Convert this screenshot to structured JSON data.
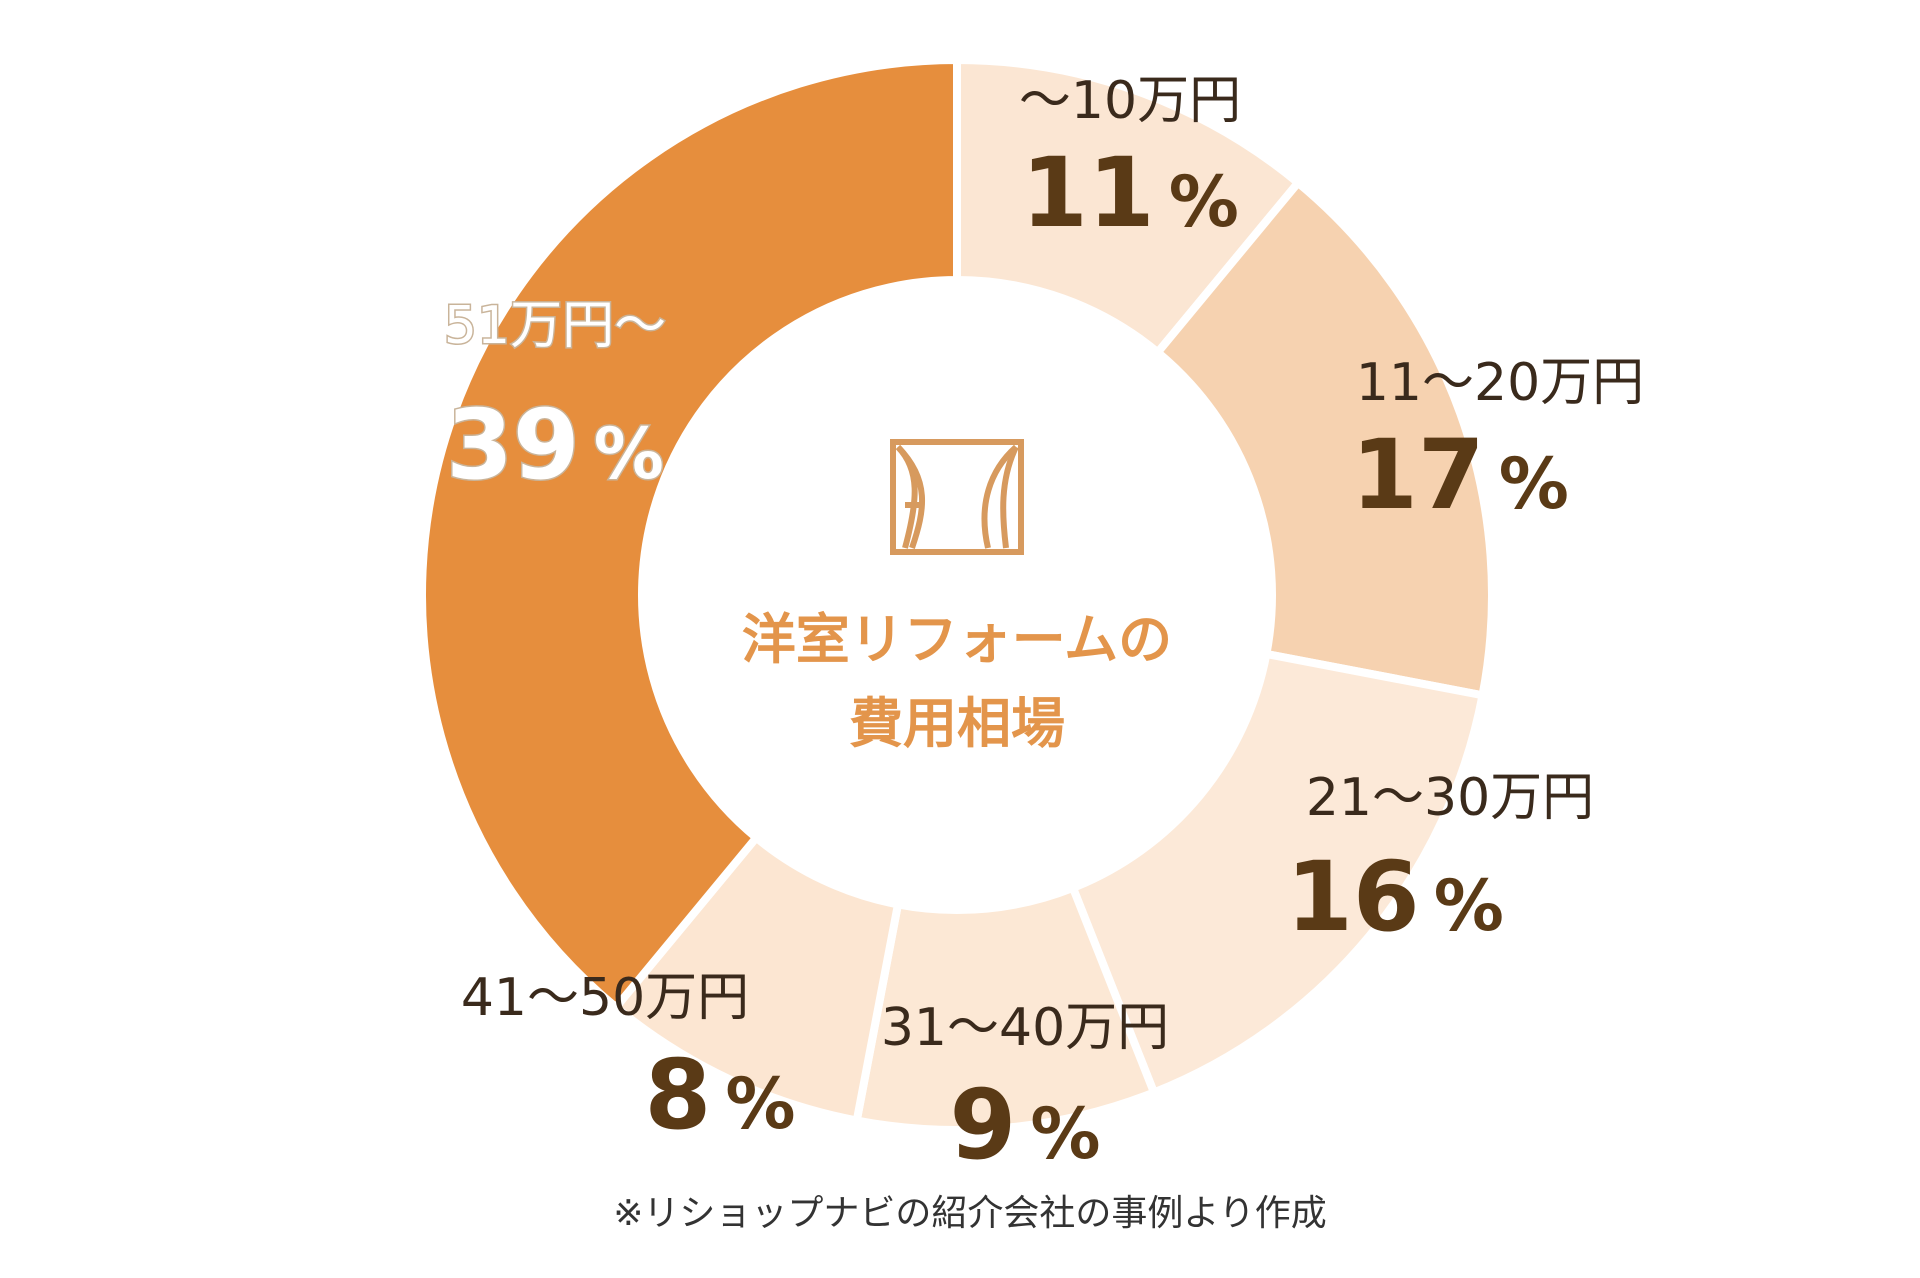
{
  "chart_data": {
    "type": "pie",
    "title_lines": [
      "洋室リフォームの",
      "費用相場"
    ],
    "slices": [
      {
        "category": "〜10万円",
        "percent": 11,
        "color": "#fbe6d3"
      },
      {
        "category": "11〜20万円",
        "percent": 17,
        "color": "#f6d2b0"
      },
      {
        "category": "21〜30万円",
        "percent": 16,
        "color": "#fce9d8"
      },
      {
        "category": "31〜40万円",
        "percent": 9,
        "color": "#fce8d5"
      },
      {
        "category": "41〜50万円",
        "percent": 8,
        "color": "#fce6d2"
      },
      {
        "category": "51万円〜",
        "percent": 39,
        "color": "#e68e3d"
      }
    ],
    "percent_sign": "%",
    "center_icon": "curtain-icon"
  },
  "footnote": "※リショップナビの紹介会社の事例より作成"
}
